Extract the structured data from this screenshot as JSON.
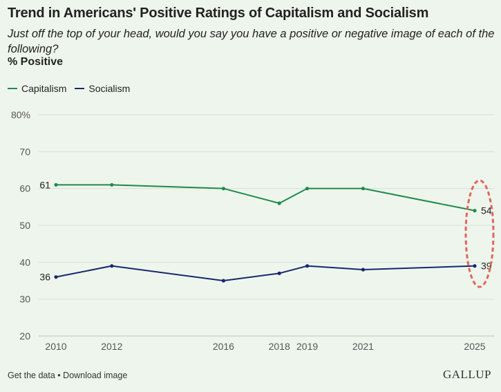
{
  "chart_data": {
    "type": "line",
    "title": "Trend in Americans' Positive Ratings of Capitalism and Socialism",
    "subtitle": "Just off the top of your head, would you say you have a positive or negative image of each of the following?",
    "unit_label": "% Positive",
    "x": [
      2010,
      2012,
      2016,
      2018,
      2019,
      2021,
      2025
    ],
    "y_ticks": [
      "20",
      "30",
      "40",
      "50",
      "60",
      "70",
      "80%"
    ],
    "ylim": [
      20,
      80
    ],
    "grid": true,
    "legend_position": "top-left",
    "series": [
      {
        "name": "Capitalism",
        "color": "#1e8a4c",
        "values": [
          61,
          61,
          60,
          56,
          60,
          60,
          54
        ]
      },
      {
        "name": "Socialism",
        "color": "#14286e",
        "values": [
          36,
          39,
          35,
          37,
          39,
          38,
          39
        ]
      }
    ],
    "end_labels": [
      {
        "series": "Capitalism",
        "year": 2010,
        "text": "61"
      },
      {
        "series": "Socialism",
        "year": 2010,
        "text": "36"
      },
      {
        "series": "Capitalism",
        "year": 2025,
        "text": "54"
      },
      {
        "series": "Socialism",
        "year": 2025,
        "text": "39"
      }
    ],
    "highlight": {
      "year": 2025,
      "style": "dashed-ellipse",
      "color": "#e0665a"
    }
  },
  "footer": {
    "get_data": "Get the data",
    "separator": "•",
    "download": "Download image",
    "brand": "GALLUP"
  }
}
